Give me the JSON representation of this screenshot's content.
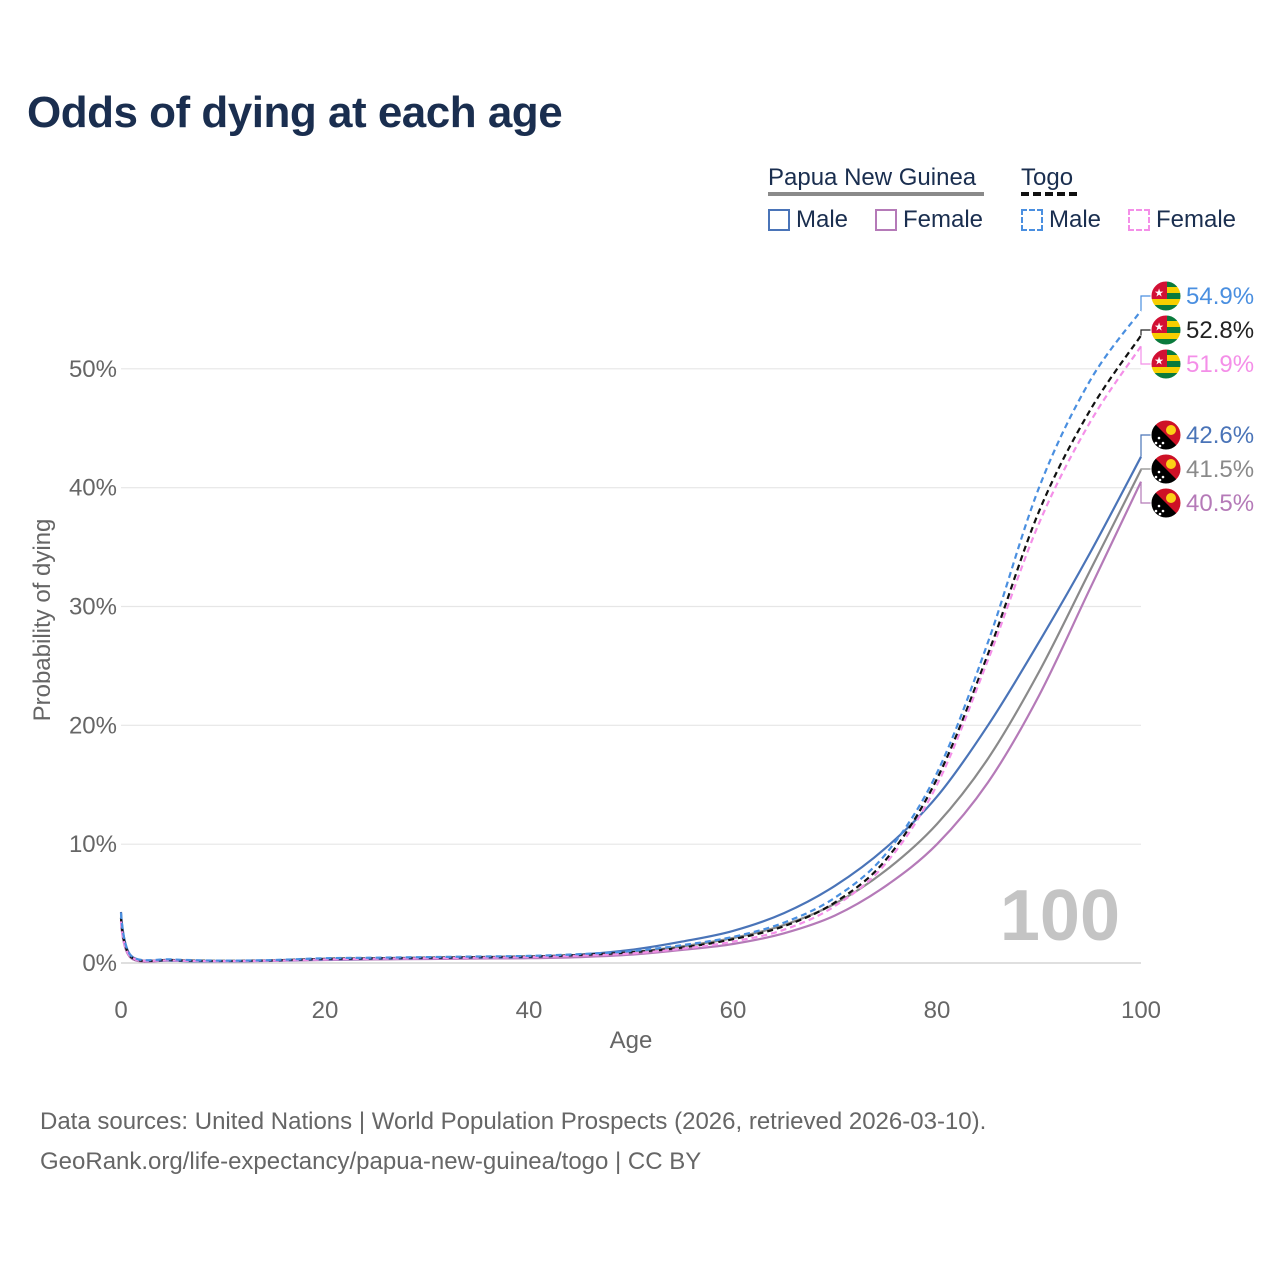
{
  "title": "Odds of dying at each age",
  "legend": {
    "groups": [
      {
        "country": "Papua New Guinea",
        "items": [
          "Male",
          "Female"
        ]
      },
      {
        "country": "Togo",
        "items": [
          "Male",
          "Female"
        ]
      }
    ]
  },
  "footer": {
    "line1": "Data sources: United Nations | World Population Prospects (2026, retrieved 2026-03-10).",
    "line2": "GeoRank.org/life-expectancy/papua-new-guinea/togo | CC BY"
  },
  "chart_data": {
    "type": "line",
    "title": "Odds of dying at each age",
    "xlabel": "Age",
    "ylabel": "Probability of dying",
    "xlim": [
      0,
      100
    ],
    "ylim": [
      0,
      0.6
    ],
    "x_ticks": [
      0,
      20,
      40,
      60,
      80,
      100
    ],
    "x_tick_labels": [
      "0",
      "20",
      "40",
      "60",
      "80",
      "100"
    ],
    "y_ticks": [
      0,
      0.1,
      0.2,
      0.3,
      0.4,
      0.5
    ],
    "y_tick_labels": [
      "0%",
      "10%",
      "20%",
      "30%",
      "40%",
      "50%"
    ],
    "watermark": "100",
    "x": [
      0,
      1,
      5,
      10,
      15,
      20,
      25,
      30,
      35,
      40,
      45,
      50,
      55,
      60,
      65,
      70,
      75,
      80,
      85,
      90,
      95,
      100
    ],
    "series": [
      {
        "name": "Papua New Guinea Male",
        "country": "Papua New Guinea",
        "sex": "Male",
        "color": "#4a74b8",
        "dash": false,
        "end_label": "42.6%",
        "values": [
          0.043,
          0.006,
          0.002,
          0.0015,
          0.002,
          0.003,
          0.0035,
          0.004,
          0.0045,
          0.005,
          0.007,
          0.011,
          0.018,
          0.027,
          0.042,
          0.065,
          0.097,
          0.14,
          0.2,
          0.27,
          0.345,
          0.426
        ]
      },
      {
        "name": "Papua New Guinea Total",
        "country": "Papua New Guinea",
        "sex": "Total",
        "color": "#8a8a8a",
        "dash": false,
        "end_label": "41.5%",
        "values": [
          0.038,
          0.005,
          0.002,
          0.0015,
          0.002,
          0.0028,
          0.0032,
          0.0036,
          0.004,
          0.0045,
          0.006,
          0.009,
          0.014,
          0.021,
          0.032,
          0.05,
          0.078,
          0.117,
          0.172,
          0.245,
          0.33,
          0.415
        ]
      },
      {
        "name": "Papua New Guinea Female",
        "country": "Papua New Guinea",
        "sex": "Female",
        "color": "#b57ab8",
        "dash": false,
        "end_label": "40.5%",
        "values": [
          0.034,
          0.004,
          0.002,
          0.0014,
          0.0018,
          0.0025,
          0.003,
          0.0034,
          0.0038,
          0.004,
          0.005,
          0.007,
          0.011,
          0.016,
          0.025,
          0.04,
          0.065,
          0.1,
          0.152,
          0.225,
          0.315,
          0.405
        ]
      },
      {
        "name": "Togo Male",
        "country": "Togo",
        "sex": "Male",
        "color": "#4a8fe0",
        "dash": true,
        "end_label": "54.9%",
        "values": [
          0.042,
          0.006,
          0.003,
          0.002,
          0.0025,
          0.004,
          0.0045,
          0.005,
          0.0055,
          0.006,
          0.0075,
          0.01,
          0.015,
          0.022,
          0.034,
          0.055,
          0.092,
          0.16,
          0.27,
          0.4,
          0.49,
          0.549
        ]
      },
      {
        "name": "Togo Total",
        "country": "Togo",
        "sex": "Total",
        "color": "#111111",
        "dash": true,
        "end_label": "52.8%",
        "values": [
          0.038,
          0.005,
          0.0025,
          0.0018,
          0.0023,
          0.0035,
          0.004,
          0.0045,
          0.005,
          0.0055,
          0.0068,
          0.009,
          0.013,
          0.02,
          0.031,
          0.051,
          0.087,
          0.155,
          0.26,
          0.38,
          0.465,
          0.528
        ]
      },
      {
        "name": "Togo Female",
        "country": "Togo",
        "sex": "Female",
        "color": "#f48fe8",
        "dash": true,
        "end_label": "51.9%",
        "values": [
          0.035,
          0.005,
          0.0022,
          0.0016,
          0.002,
          0.003,
          0.0036,
          0.004,
          0.0045,
          0.005,
          0.0062,
          0.008,
          0.012,
          0.018,
          0.028,
          0.048,
          0.084,
          0.15,
          0.255,
          0.37,
          0.455,
          0.519
        ]
      }
    ]
  }
}
